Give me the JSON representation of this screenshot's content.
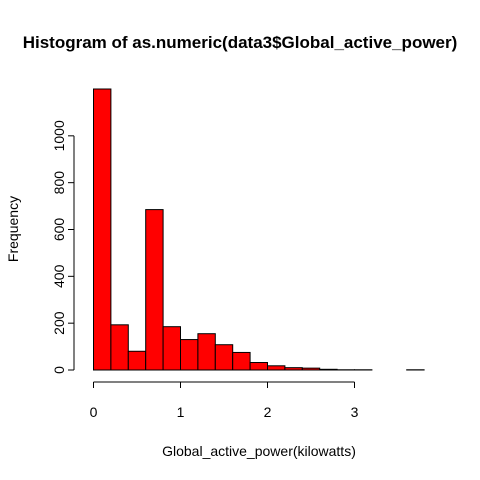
{
  "chart_data": {
    "type": "bar",
    "title": "Histogram of as.numeric(data3$Global_active_power)",
    "xlabel": "Global_active_power(kilowatts)",
    "ylabel": "Frequency",
    "bar_color": "#ff0000",
    "bar_border_color": "#000000",
    "bin_width": 0.2,
    "bins": [
      {
        "x0": 0.0,
        "x1": 0.2,
        "count": 1200
      },
      {
        "x0": 0.2,
        "x1": 0.4,
        "count": 193
      },
      {
        "x0": 0.4,
        "x1": 0.6,
        "count": 80
      },
      {
        "x0": 0.6,
        "x1": 0.8,
        "count": 685
      },
      {
        "x0": 0.8,
        "x1": 1.0,
        "count": 185
      },
      {
        "x0": 1.0,
        "x1": 1.2,
        "count": 130
      },
      {
        "x0": 1.2,
        "x1": 1.4,
        "count": 155
      },
      {
        "x0": 1.4,
        "x1": 1.6,
        "count": 108
      },
      {
        "x0": 1.6,
        "x1": 1.8,
        "count": 75
      },
      {
        "x0": 1.8,
        "x1": 2.0,
        "count": 32
      },
      {
        "x0": 2.0,
        "x1": 2.2,
        "count": 18
      },
      {
        "x0": 2.2,
        "x1": 2.4,
        "count": 10
      },
      {
        "x0": 2.4,
        "x1": 2.6,
        "count": 8
      },
      {
        "x0": 2.6,
        "x1": 2.8,
        "count": 3
      },
      {
        "x0": 2.8,
        "x1": 3.0,
        "count": 1
      },
      {
        "x0": 3.0,
        "x1": 3.2,
        "count": 1
      },
      {
        "x0": 3.2,
        "x1": 3.4,
        "count": 0
      },
      {
        "x0": 3.4,
        "x1": 3.6,
        "count": 0
      },
      {
        "x0": 3.6,
        "x1": 3.8,
        "count": 1
      }
    ],
    "x_ticks": [
      0,
      1,
      2,
      3
    ],
    "y_ticks": [
      0,
      200,
      400,
      600,
      800,
      1000
    ],
    "xlim": [
      0,
      3.8
    ],
    "ylim": [
      0,
      1200
    ],
    "grid": false,
    "legend": "none"
  }
}
